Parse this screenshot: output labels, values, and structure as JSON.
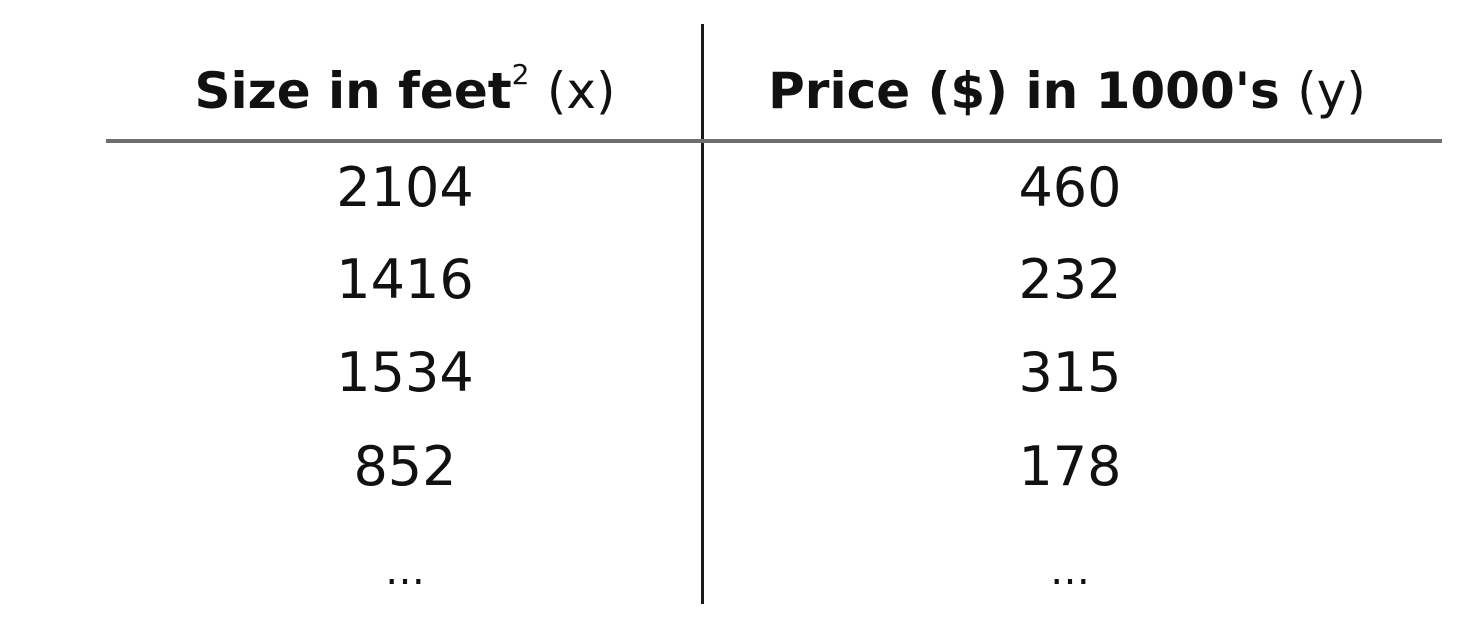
{
  "table": {
    "headers": {
      "x": {
        "main": "Size in feet",
        "superscript": "2",
        "var": "(x)"
      },
      "y": {
        "main": "Price ($) in 1000's",
        "var": "(y)"
      }
    },
    "rows": [
      {
        "x": "2104",
        "y": "460"
      },
      {
        "x": "1416",
        "y": "232"
      },
      {
        "x": "1534",
        "y": "315"
      },
      {
        "x": "852",
        "y": "178"
      },
      {
        "x": "…",
        "y": "…"
      }
    ]
  }
}
